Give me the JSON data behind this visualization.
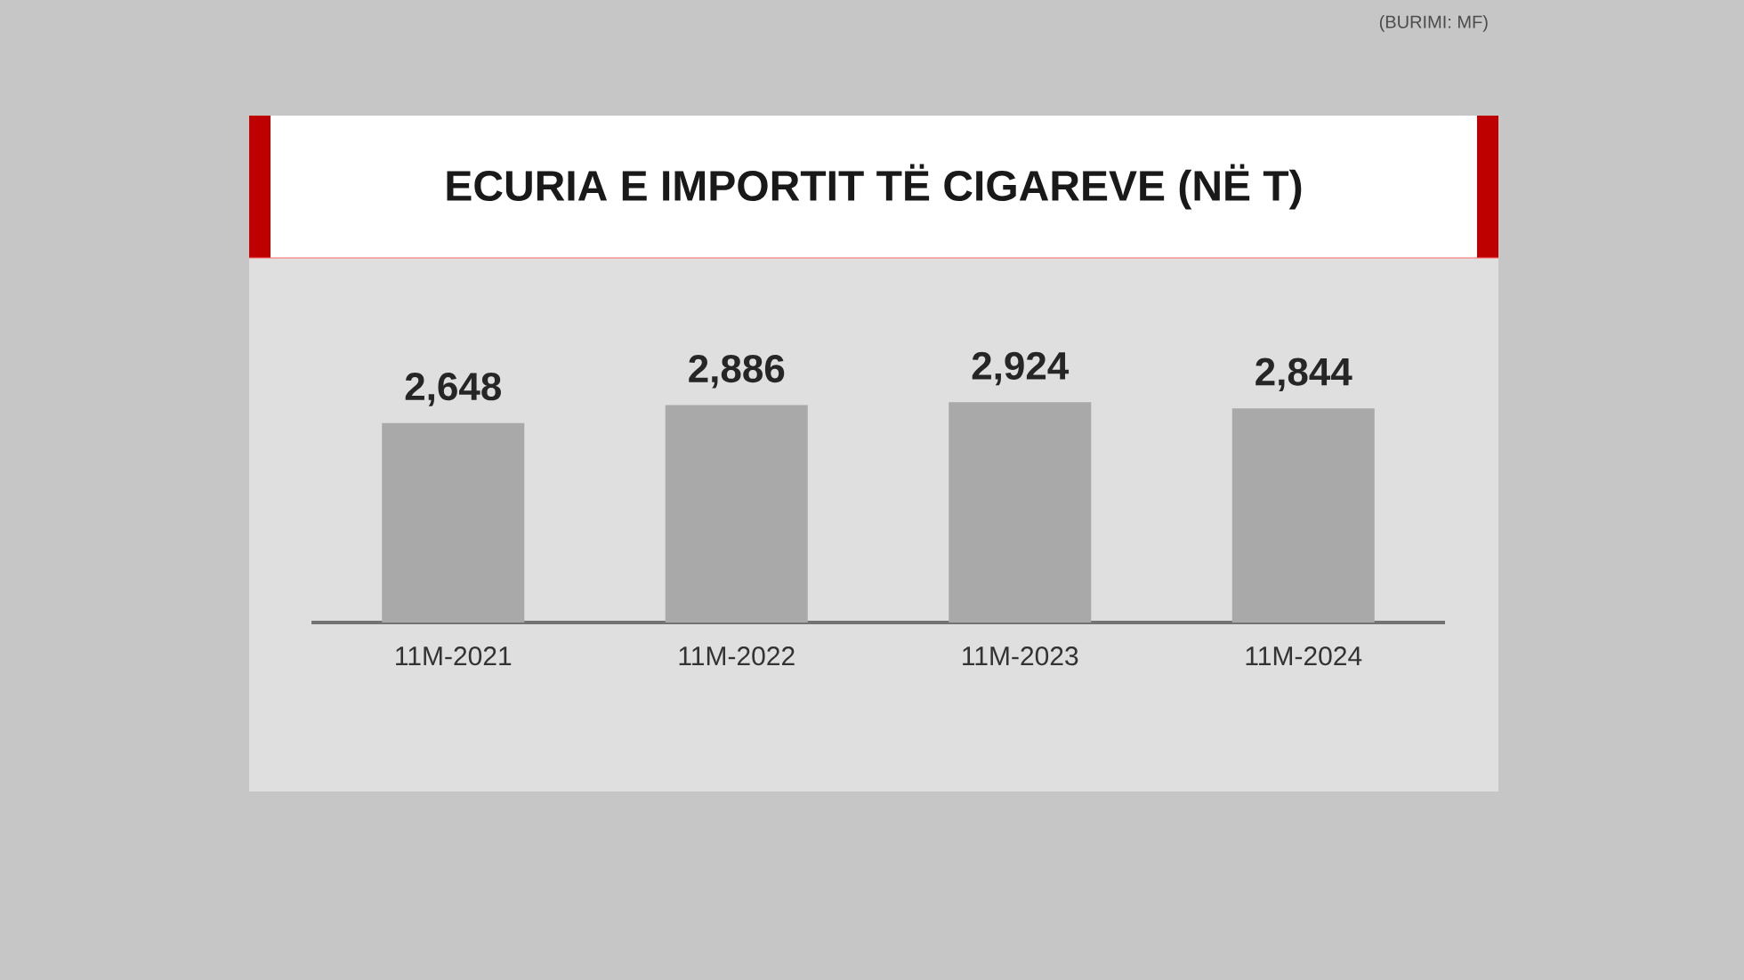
{
  "chart_data": {
    "type": "bar",
    "title": "ECURIA E IMPORTIT TË CIGAREVE (NË T)",
    "categories": [
      "11M-2021",
      "11M-2022",
      "11M-2023",
      "11M-2024"
    ],
    "values": [
      2648,
      2886,
      2924,
      2844
    ],
    "value_labels": [
      "2,648",
      "2,886",
      "2,924",
      "2,844"
    ],
    "color": "#a9a9a9",
    "tick_labels": "x",
    "annotations": [
      "(BURIMI: MF)"
    ]
  }
}
